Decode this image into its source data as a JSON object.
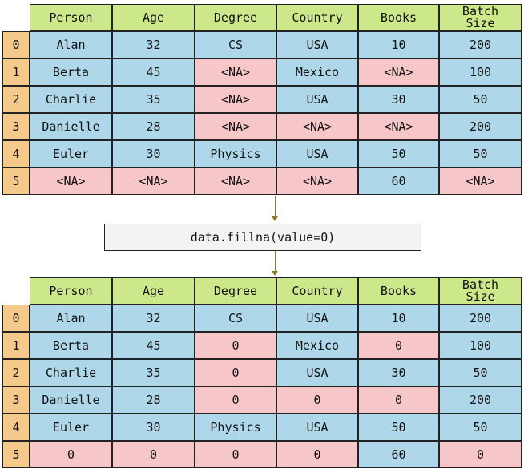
{
  "columns": [
    "Person",
    "Age",
    "Degree",
    "Country",
    "Books",
    "Batch Size"
  ],
  "index": [
    "0",
    "1",
    "2",
    "3",
    "4",
    "5"
  ],
  "before": [
    [
      "Alan",
      "32",
      "CS",
      "USA",
      "10",
      "200"
    ],
    [
      "Berta",
      "45",
      "<NA>",
      "Mexico",
      "<NA>",
      "100"
    ],
    [
      "Charlie",
      "35",
      "<NA>",
      "USA",
      "30",
      "50"
    ],
    [
      "Danielle",
      "28",
      "<NA>",
      "<NA>",
      "<NA>",
      "200"
    ],
    [
      "Euler",
      "30",
      "Physics",
      "USA",
      "50",
      "50"
    ],
    [
      "<NA>",
      "<NA>",
      "<NA>",
      "<NA>",
      "60",
      "<NA>"
    ]
  ],
  "operation": "data.fillna(value=0)",
  "after": [
    [
      "Alan",
      "32",
      "CS",
      "USA",
      "10",
      "200"
    ],
    [
      "Berta",
      "45",
      "0",
      "Mexico",
      "0",
      "100"
    ],
    [
      "Charlie",
      "35",
      "0",
      "USA",
      "30",
      "50"
    ],
    [
      "Danielle",
      "28",
      "0",
      "0",
      "0",
      "200"
    ],
    [
      "Euler",
      "30",
      "Physics",
      "USA",
      "50",
      "50"
    ],
    [
      "0",
      "0",
      "0",
      "0",
      "60",
      "0"
    ]
  ],
  "missing_mask": [
    [
      false,
      false,
      false,
      false,
      false,
      false
    ],
    [
      false,
      false,
      true,
      false,
      true,
      false
    ],
    [
      false,
      false,
      true,
      false,
      false,
      false
    ],
    [
      false,
      false,
      true,
      true,
      true,
      false
    ],
    [
      false,
      false,
      false,
      false,
      false,
      false
    ],
    [
      true,
      true,
      true,
      true,
      false,
      true
    ]
  ],
  "colors": {
    "header": "#cde88a",
    "index": "#f5c98a",
    "value": "#aed8ea",
    "missing": "#f7c6c9",
    "operation_box": "#f3f3f3",
    "arrow": "#8a7a2a"
  }
}
